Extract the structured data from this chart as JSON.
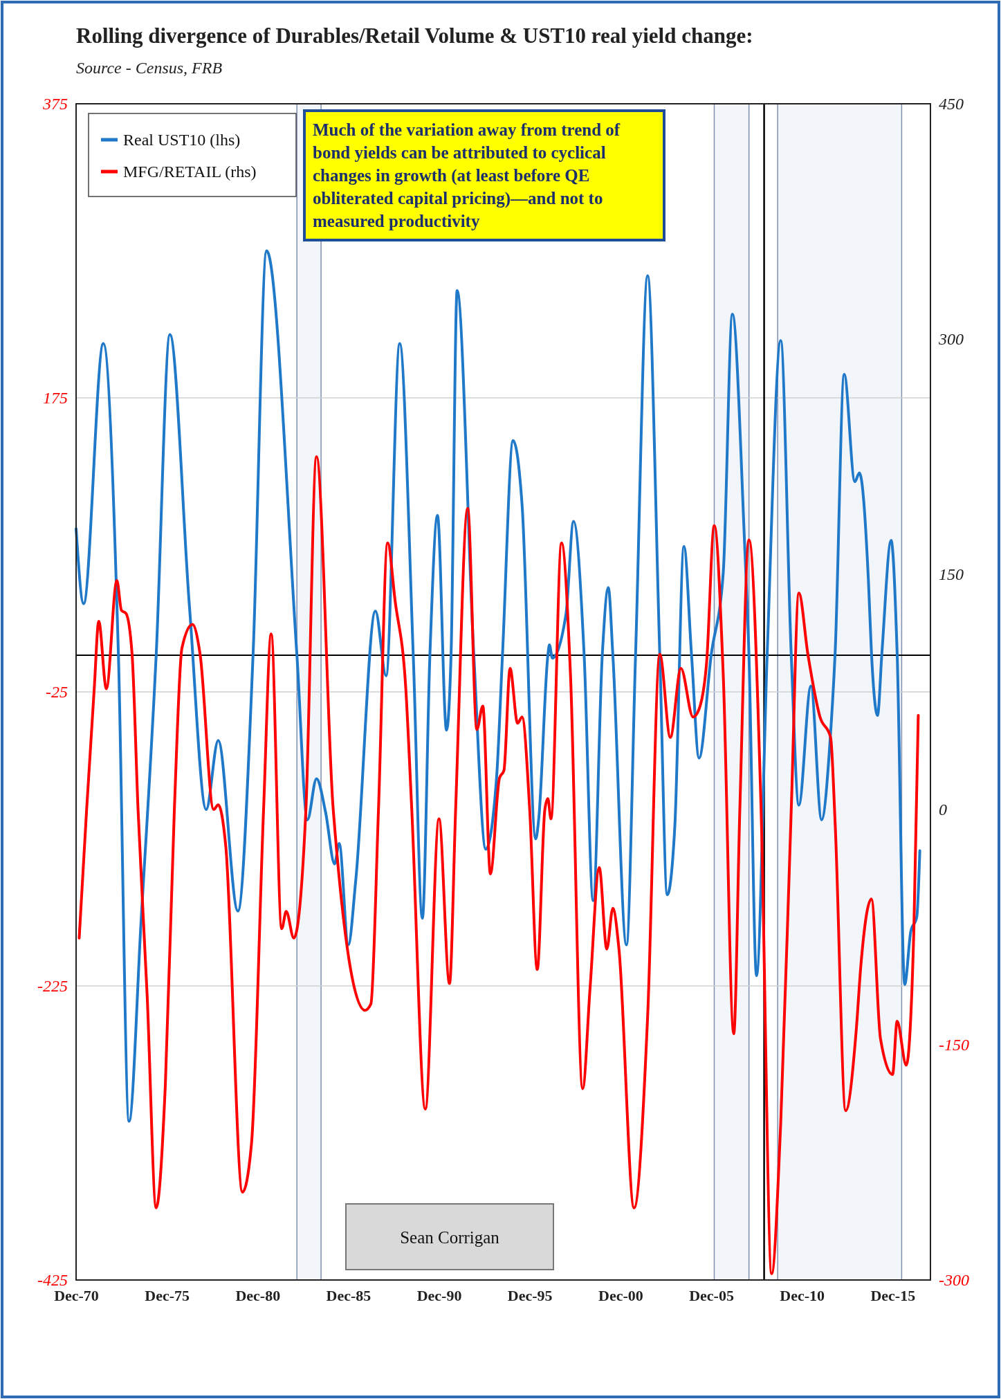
{
  "chart_data": {
    "type": "line",
    "title": "Rolling divergence of Durables/Retail Volume & UST10 real yield change:",
    "annotations": [
      "Source - Census, FRB",
      "Much of the variation away from trend of bond yields can be attributed to cyclical changes in growth  (at least before QE obliterated capital pricing)—and not to measured productivity",
      "Sean Corrigan"
    ],
    "xlim": [
      "1970-12",
      "2018-01"
    ],
    "xticks": [
      {
        "value": "1970-12",
        "label": "Dec-70"
      },
      {
        "value": "1975-12",
        "label": "Dec-75"
      },
      {
        "value": "1980-12",
        "label": "Dec-80"
      },
      {
        "value": "1985-12",
        "label": "Dec-85"
      },
      {
        "value": "1990-12",
        "label": "Dec-90"
      },
      {
        "value": "1995-12",
        "label": "Dec-95"
      },
      {
        "value": "2000-12",
        "label": "Dec-00"
      },
      {
        "value": "2005-12",
        "label": "Dec-05"
      },
      {
        "value": "2010-12",
        "label": "Dec-10"
      },
      {
        "value": "2015-12",
        "label": "Dec-15"
      }
    ],
    "ylim": [
      -425,
      375
    ],
    "yticks": [
      -425,
      -225,
      -25,
      175,
      375
    ],
    "y2lim": [
      -300,
      450
    ],
    "y2ticks": [
      -300,
      -150,
      0,
      150,
      300,
      450
    ],
    "grid": "y",
    "legend": "top left",
    "line_style": "solid",
    "marker": "none",
    "ref_lines": [
      {
        "axis": "y",
        "value": 0,
        "color": "#000000"
      },
      {
        "axis": "x",
        "value": "2008-11",
        "color": "#000000"
      }
    ],
    "bands": [
      {
        "axis": "x",
        "from": "1983-02",
        "to": "1984-06",
        "color": "#f2f6fb"
      },
      {
        "axis": "x",
        "from": "2006-02",
        "to": "2008-01",
        "color": "#f2f6fb"
      },
      {
        "axis": "x",
        "from": "2009-08",
        "to": "2016-06",
        "color": "#f2f6fb"
      }
    ],
    "series": [
      {
        "name": "Real UST10 (lhs)",
        "color": "#1f78c8",
        "axis": "y",
        "x": [
          "1970-12",
          "1971-05",
          "1972-06",
          "1973-04",
          "1973-11",
          "1974-07",
          "1975-05",
          "1976-02",
          "1977-03",
          "1978-02",
          "1978-10",
          "1979-11",
          "1980-09",
          "1981-06",
          "1983-02",
          "1983-09",
          "1984-03",
          "1984-09",
          "1985-03",
          "1985-06",
          "1985-12",
          "1986-05",
          "1987-06",
          "1988-01",
          "1988-10",
          "1989-07",
          "1990-01",
          "1990-06",
          "1990-11",
          "1991-05",
          "1991-08",
          "1991-12",
          "1992-11",
          "1993-07",
          "1994-02",
          "1994-06",
          "1995-01",
          "1995-07",
          "1996-04",
          "1996-06",
          "1996-12",
          "1997-01",
          "1997-03",
          "1997-12",
          "1998-05",
          "1998-12",
          "1999-06",
          "1999-12",
          "2000-04",
          "2000-07",
          "2001-04",
          "2001-10",
          "2002-06",
          "2003-02",
          "2003-07",
          "2003-12",
          "2004-06",
          "2004-11",
          "2005-04",
          "2005-12",
          "2006-08",
          "2007-02",
          "2007-10",
          "2008-01",
          "2008-06",
          "2009-01",
          "2009-10",
          "2010-05",
          "2010-10",
          "2011-06",
          "2012-01",
          "2012-07",
          "2012-10",
          "2013-04",
          "2013-11",
          "2014-02",
          "2014-08",
          "2014-10",
          "2015-02",
          "2015-05",
          "2015-11",
          "2016-03",
          "2016-08",
          "2016-12",
          "2017-04",
          "2017-06"
        ],
        "values": [
          86,
          35,
          212,
          0,
          -317,
          -181,
          0,
          218,
          33,
          -105,
          -58,
          -174,
          0,
          275,
          0,
          -112,
          -84,
          -107,
          -142,
          -128,
          -197,
          -153,
          30,
          -14,
          212,
          0,
          -179,
          0,
          95,
          -51,
          0,
          248,
          0,
          -132,
          -84,
          0,
          146,
          102,
          -125,
          -111,
          0,
          7,
          -2,
          28,
          91,
          0,
          -167,
          0,
          46,
          0,
          -197,
          0,
          258,
          0,
          -163,
          -116,
          74,
          0,
          -70,
          0,
          56,
          232,
          79,
          0,
          -218,
          0,
          214,
          0,
          -102,
          -21,
          -112,
          -53,
          2,
          191,
          118,
          124,
          51,
          2,
          -41,
          2,
          78,
          2,
          -224,
          -188,
          -178,
          -133
        ]
      },
      {
        "name": "MFG/RETAIL (rhs)",
        "color": "#ff0000",
        "axis": "y2",
        "x": [
          "1971-02",
          "1971-07",
          "1971-12",
          "1972-03",
          "1972-08",
          "1973-03",
          "1973-06",
          "1973-09",
          "1974-01",
          "1974-05",
          "1974-11",
          "1975-05",
          "1975-11",
          "1976-05",
          "1976-10",
          "1977-05",
          "1977-10",
          "1978-07",
          "1978-10",
          "1979-03",
          "1980-02",
          "1980-08",
          "1981-04",
          "1981-09",
          "1982-04",
          "1982-07",
          "1982-12",
          "1983-08",
          "1984-03",
          "1985-02",
          "1986-11",
          "1987-03",
          "1987-08",
          "1988-02",
          "1988-07",
          "1989-02",
          "1989-06",
          "1990-03",
          "1990-12",
          "1991-07",
          "1991-11",
          "1992-07",
          "1993-01",
          "1993-05",
          "1993-10",
          "1994-04",
          "1994-07",
          "1994-11",
          "1995-04",
          "1995-07",
          "1995-12",
          "1996-05",
          "1996-10",
          "1996-12",
          "1997-02",
          "1997-09",
          "1998-03",
          "1998-11",
          "1999-04",
          "1999-10",
          "2000-03",
          "2000-07",
          "2000-11",
          "2001-09",
          "2002-06",
          "2003-02",
          "2003-09",
          "2004-04",
          "2004-12",
          "2005-04",
          "2005-09",
          "2006-02",
          "2006-08",
          "2007-03",
          "2007-07",
          "2008-01",
          "2008-09",
          "2009-04",
          "2009-10",
          "2010-05",
          "2010-10",
          "2011-04",
          "2011-12",
          "2012-07",
          "2012-10",
          "2013-05",
          "2013-12",
          "2014-03",
          "2014-10",
          "2015-04",
          "2015-12",
          "2016-03",
          "2016-09",
          "2017-02",
          "2017-05"
        ],
        "values": [
          -82,
          0,
          77,
          120,
          77,
          146,
          127,
          125,
          99,
          0,
          -119,
          -254,
          -176,
          0,
          103,
          118,
          99,
          0,
          3,
          -23,
          -244,
          -213,
          0,
          112,
          -76,
          -65,
          -82,
          0,
          225,
          0,
          -128,
          -124,
          0,
          170,
          133,
          77,
          0,
          -191,
          -6,
          -111,
          0,
          192,
          51,
          66,
          -41,
          20,
          25,
          90,
          55,
          59,
          0,
          -102,
          0,
          7,
          -6,
          170,
          86,
          -178,
          -113,
          -37,
          -89,
          -63,
          -89,
          -254,
          -132,
          99,
          46,
          90,
          59,
          64,
          94,
          181,
          86,
          -143,
          0,
          172,
          0,
          -296,
          -200,
          0,
          138,
          99,
          59,
          46,
          -9,
          -192,
          -140,
          -100,
          -57,
          -146,
          -169,
          -135,
          -163,
          -77,
          60
        ]
      }
    ]
  }
}
